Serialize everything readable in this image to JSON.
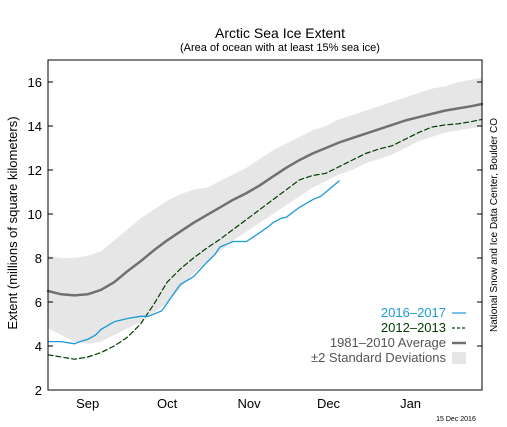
{
  "chart_data": {
    "type": "line",
    "title": "Arctic Sea Ice Extent",
    "subtitle": "(Area of ocean with at least 15% sea ice)",
    "ylabel": "Extent (millions of square kilometers)",
    "xlabel": "",
    "ylim": [
      2,
      17
    ],
    "xlim": [
      0,
      164
    ],
    "yticks": [
      2,
      4,
      6,
      8,
      10,
      12,
      14,
      16
    ],
    "xtick_labels": [
      {
        "label": "Sep",
        "x": 15
      },
      {
        "label": "Oct",
        "x": 45
      },
      {
        "label": "Nov",
        "x": 76
      },
      {
        "label": "Dec",
        "x": 106
      },
      {
        "label": "Jan",
        "x": 137
      }
    ],
    "x_unit": "day index from Aug 15",
    "legend_position": "lower-right",
    "grid": false,
    "band": {
      "name": "±2 Standard Deviations",
      "color": "#e6e6e6",
      "x": [
        0,
        5,
        10,
        15,
        20,
        25,
        30,
        35,
        40,
        45,
        50,
        55,
        60,
        65,
        70,
        75,
        80,
        85,
        90,
        95,
        100,
        105,
        110,
        115,
        120,
        125,
        130,
        135,
        140,
        145,
        150,
        155,
        160,
        164
      ],
      "upper": [
        8.1,
        8.0,
        8.0,
        8.1,
        8.3,
        8.8,
        9.3,
        9.8,
        10.2,
        10.6,
        10.9,
        11.1,
        11.2,
        11.5,
        11.8,
        12.1,
        12.5,
        12.9,
        13.2,
        13.5,
        13.8,
        14.0,
        14.3,
        14.5,
        14.7,
        14.9,
        15.1,
        15.3,
        15.5,
        15.7,
        15.8,
        16.0,
        16.1,
        16.2
      ],
      "lower": [
        4.8,
        4.5,
        4.2,
        4.1,
        4.2,
        4.5,
        4.8,
        5.1,
        5.5,
        6.0,
        6.6,
        7.3,
        7.8,
        8.3,
        8.8,
        9.2,
        9.6,
        10.0,
        10.4,
        10.8,
        11.2,
        11.5,
        11.8,
        12.0,
        12.3,
        12.5,
        12.7,
        13.0,
        13.3,
        13.5,
        13.7,
        13.8,
        13.9,
        14.0
      ]
    },
    "series": [
      {
        "name": "1981–2010 Average",
        "color": "#707070",
        "dash": "none",
        "width": 2.5,
        "x": [
          0,
          5,
          10,
          15,
          20,
          25,
          30,
          35,
          40,
          45,
          50,
          55,
          60,
          65,
          70,
          75,
          80,
          85,
          90,
          95,
          100,
          105,
          110,
          115,
          120,
          125,
          130,
          135,
          140,
          145,
          150,
          155,
          160,
          164
        ],
        "values": [
          6.5,
          6.35,
          6.3,
          6.35,
          6.55,
          6.9,
          7.4,
          7.85,
          8.35,
          8.8,
          9.2,
          9.6,
          9.95,
          10.3,
          10.65,
          10.95,
          11.3,
          11.7,
          12.1,
          12.45,
          12.75,
          13.0,
          13.25,
          13.45,
          13.65,
          13.85,
          14.05,
          14.25,
          14.4,
          14.55,
          14.7,
          14.8,
          14.9,
          15.0
        ]
      },
      {
        "name": "2012–2013",
        "color": "#003c00",
        "dash": "5,3",
        "width": 1.2,
        "x": [
          0,
          5,
          10,
          15,
          20,
          25,
          30,
          35,
          40,
          45,
          50,
          55,
          60,
          65,
          70,
          75,
          80,
          85,
          90,
          95,
          100,
          105,
          110,
          115,
          120,
          125,
          130,
          135,
          140,
          145,
          150,
          155,
          160,
          164
        ],
        "values": [
          3.6,
          3.5,
          3.4,
          3.5,
          3.7,
          4.0,
          4.4,
          5.0,
          5.9,
          6.9,
          7.5,
          8.0,
          8.45,
          8.85,
          9.3,
          9.75,
          10.2,
          10.65,
          11.1,
          11.55,
          11.75,
          11.85,
          12.15,
          12.45,
          12.75,
          12.95,
          13.1,
          13.4,
          13.7,
          13.95,
          14.05,
          14.1,
          14.2,
          14.3
        ]
      },
      {
        "name": "2016–2017",
        "color": "#1c9ad6",
        "dash": "none",
        "width": 1.3,
        "x": [
          0,
          5,
          10,
          12,
          15,
          18,
          20,
          25,
          30,
          35,
          38,
          40,
          43,
          45,
          50,
          55,
          60,
          63,
          65,
          70,
          75,
          80,
          83,
          85,
          88,
          90,
          95,
          100,
          103,
          105,
          108,
          110
        ],
        "values": [
          4.2,
          4.2,
          4.1,
          4.2,
          4.3,
          4.5,
          4.75,
          5.1,
          5.25,
          5.35,
          5.35,
          5.45,
          5.6,
          5.95,
          6.8,
          7.15,
          7.8,
          8.15,
          8.5,
          8.75,
          8.75,
          9.15,
          9.4,
          9.6,
          9.8,
          9.85,
          10.3,
          10.65,
          10.8,
          11.0,
          11.3,
          11.5
        ]
      }
    ]
  },
  "legend": {
    "items": [
      {
        "label": "2016–2017",
        "color": "#1c9ad6",
        "kind": "line"
      },
      {
        "label": "2012–2013",
        "color": "#003c00",
        "kind": "dashed"
      },
      {
        "label": "1981–2010 Average",
        "color": "#707070",
        "kind": "thick"
      },
      {
        "label": "±2 Standard Deviations",
        "color": "#e6e6e6",
        "kind": "box"
      }
    ]
  },
  "credit": "National Snow and Ice Data Center, Boulder CO",
  "date_stamp": "15 Dec 2016"
}
